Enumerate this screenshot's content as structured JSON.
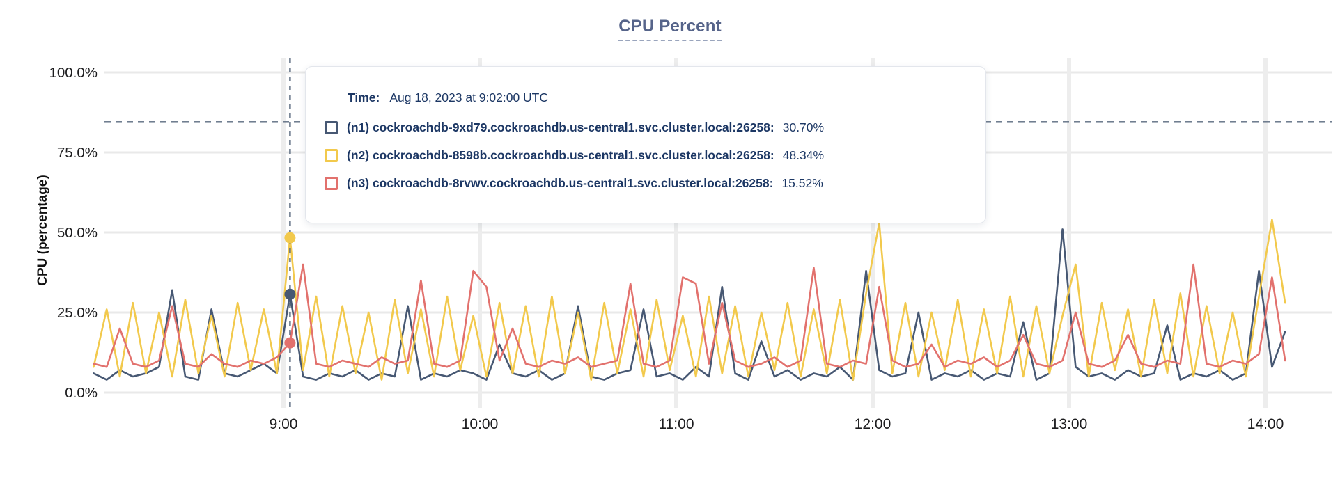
{
  "chart": {
    "title": "CPU Percent",
    "y_axis_title": "CPU (percentage)"
  },
  "tooltip": {
    "time_label": "Time:",
    "time_value": "Aug 18, 2023 at 9:02:00 UTC",
    "series": [
      {
        "label": "(n1) cockroachdb-9xd79.cockroachdb.us-central1.svc.cluster.local:26258:",
        "value": "30.70%",
        "color": "#475873"
      },
      {
        "label": "(n2) cockroachdb-8598b.cockroachdb.us-central1.svc.cluster.local:26258:",
        "value": "48.34%",
        "color": "#f2c94c"
      },
      {
        "label": "(n3) cockroachdb-8rvwv.cockroachdb.us-central1.svc.cluster.local:26258:",
        "value": "15.52%",
        "color": "#e2716d"
      }
    ]
  },
  "chart_data": {
    "type": "line",
    "title": "CPU Percent",
    "ylabel": "CPU (percentage)",
    "ylim": [
      0,
      100
    ],
    "grid": true,
    "legend_position": "tooltip-overlay",
    "y_tick_values": [
      100,
      75,
      50,
      25,
      0
    ],
    "y_tick_labels": [
      "100.0%",
      "75.0%",
      "50.0%",
      "25.0%",
      "0.0%"
    ],
    "x_tick_minutes": [
      540,
      600,
      660,
      720,
      780,
      840
    ],
    "x_tick_labels": [
      "9:00",
      "10:00",
      "11:00",
      "12:00",
      "13:00",
      "14:00"
    ],
    "x_start_minute": 482,
    "x_step_minutes": 4,
    "threshold_percent": 84.5,
    "cursor": {
      "minute": 542,
      "time": "Aug 18, 2023 at 9:02:00 UTC",
      "values": [
        30.7,
        48.34,
        15.52
      ]
    },
    "series": [
      {
        "name": "(n1) cockroachdb-9xd79.cockroachdb.us-central1.svc.cluster.local:26258",
        "color": "#475873",
        "values": [
          6,
          4,
          7,
          5,
          6,
          8,
          32,
          5,
          4,
          26,
          6,
          5,
          7,
          9,
          6,
          30.7,
          5,
          4,
          6,
          5,
          7,
          4,
          6,
          5,
          27,
          4,
          6,
          5,
          7,
          6,
          4,
          15,
          6,
          5,
          7,
          4,
          6,
          27,
          5,
          4,
          6,
          7,
          26,
          5,
          6,
          4,
          8,
          5,
          33,
          6,
          4,
          16,
          5,
          7,
          4,
          6,
          5,
          8,
          4,
          38,
          7,
          5,
          6,
          25,
          4,
          6,
          5,
          7,
          4,
          6,
          5,
          22,
          4,
          6,
          51,
          8,
          5,
          6,
          4,
          7,
          5,
          6,
          21,
          4,
          6,
          5,
          7,
          4,
          6,
          38,
          8,
          19
        ]
      },
      {
        "name": "(n2) cockroachdb-8598b.cockroachdb.us-central1.svc.cluster.local:26258",
        "color": "#f2c94c",
        "values": [
          8,
          26,
          5,
          28,
          6,
          25,
          5,
          29,
          6,
          24,
          5,
          28,
          7,
          26,
          6,
          48.34,
          7,
          30,
          5,
          27,
          6,
          25,
          4,
          29,
          6,
          26,
          5,
          30,
          7,
          24,
          5,
          28,
          6,
          27,
          5,
          30,
          6,
          25,
          4,
          28,
          6,
          26,
          5,
          29,
          7,
          24,
          5,
          30,
          6,
          27,
          5,
          25,
          7,
          28,
          5,
          26,
          6,
          29,
          4,
          31,
          53,
          6,
          28,
          5,
          25,
          7,
          29,
          5,
          26,
          6,
          30,
          5,
          27,
          6,
          24,
          40,
          5,
          28,
          7,
          26,
          5,
          29,
          6,
          31,
          5,
          27,
          6,
          25,
          5,
          30,
          54,
          28
        ]
      },
      {
        "name": "(n3) cockroachdb-8rvwv.cockroachdb.us-central1.svc.cluster.local:26258",
        "color": "#e2716d",
        "values": [
          9,
          8,
          20,
          9,
          8,
          10,
          27,
          9,
          8,
          12,
          9,
          8,
          10,
          9,
          11,
          15.52,
          40,
          9,
          8,
          10,
          9,
          8,
          11,
          9,
          10,
          35,
          9,
          8,
          10,
          38,
          33,
          10,
          20,
          9,
          8,
          10,
          9,
          11,
          8,
          9,
          10,
          34,
          9,
          8,
          10,
          36,
          34,
          9,
          28,
          10,
          8,
          9,
          11,
          8,
          10,
          39,
          9,
          8,
          10,
          9,
          33,
          10,
          8,
          9,
          15,
          8,
          10,
          9,
          11,
          8,
          10,
          18,
          9,
          8,
          10,
          25,
          9,
          8,
          10,
          18,
          9,
          8,
          10,
          9,
          40,
          9,
          8,
          10,
          9,
          12,
          36,
          10
        ]
      }
    ]
  }
}
